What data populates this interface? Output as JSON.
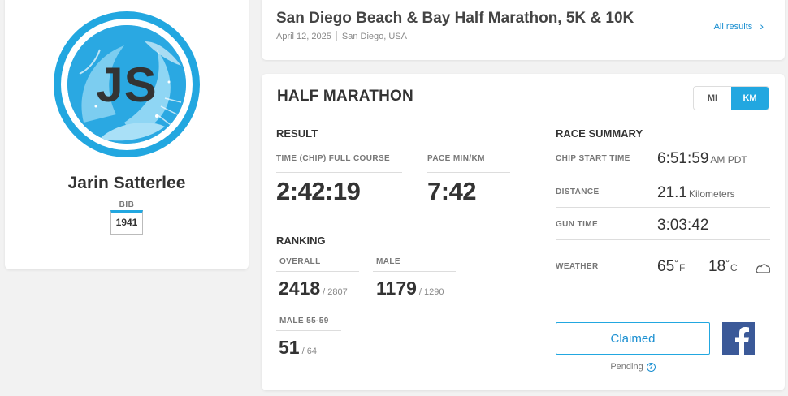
{
  "profile": {
    "initials": "JS",
    "name": "Jarin Satterlee",
    "bib_label": "BIB",
    "bib_number": "1941"
  },
  "event": {
    "title": "San Diego Beach & Bay Half Marathon, 5K & 10K",
    "date": "April 12, 2025",
    "location": "San Diego, USA",
    "all_results_label": "All results",
    "chevron_icon": "chevron-right-icon"
  },
  "race": {
    "title": "HALF MARATHON",
    "units": {
      "mi": "MI",
      "km": "KM",
      "selected": "KM"
    }
  },
  "result": {
    "section_title": "RESULT",
    "time_label": "TIME (CHIP) FULL COURSE",
    "time_value": "2:42:19",
    "pace_label": "PACE MIN/KM",
    "pace_value": "7:42"
  },
  "ranking": {
    "section_title": "RANKING",
    "overall": {
      "label": "OVERALL",
      "value": "2418",
      "of": "/ 2807"
    },
    "gender": {
      "label": "MALE",
      "value": "1179",
      "of": "/ 1290"
    },
    "age_group": {
      "label": "MALE 55-59",
      "value": "51",
      "of": "/ 64"
    }
  },
  "summary": {
    "section_title": "RACE SUMMARY",
    "chip_start_label": "CHIP START TIME",
    "chip_start_value": "6:51:59",
    "chip_start_unit": "AM PDT",
    "distance_label": "DISTANCE",
    "distance_value": "21.1",
    "distance_unit": "Kilometers",
    "gun_time_label": "GUN TIME",
    "gun_time_value": "3:03:42",
    "weather_label": "WEATHER",
    "temp_f": "65",
    "temp_f_unit": "F",
    "temp_c": "18",
    "temp_c_unit": "C",
    "degree_symbol": "°",
    "weather_icon": "cloud-icon"
  },
  "actions": {
    "claimed_label": "Claimed",
    "facebook_icon": "facebook-icon",
    "pending_label": "Pending",
    "help_icon": "?"
  },
  "colors": {
    "accent": "#22a7e0",
    "link": "#1a8fd1",
    "facebook": "#3b5998",
    "background": "#f2f2f2"
  }
}
